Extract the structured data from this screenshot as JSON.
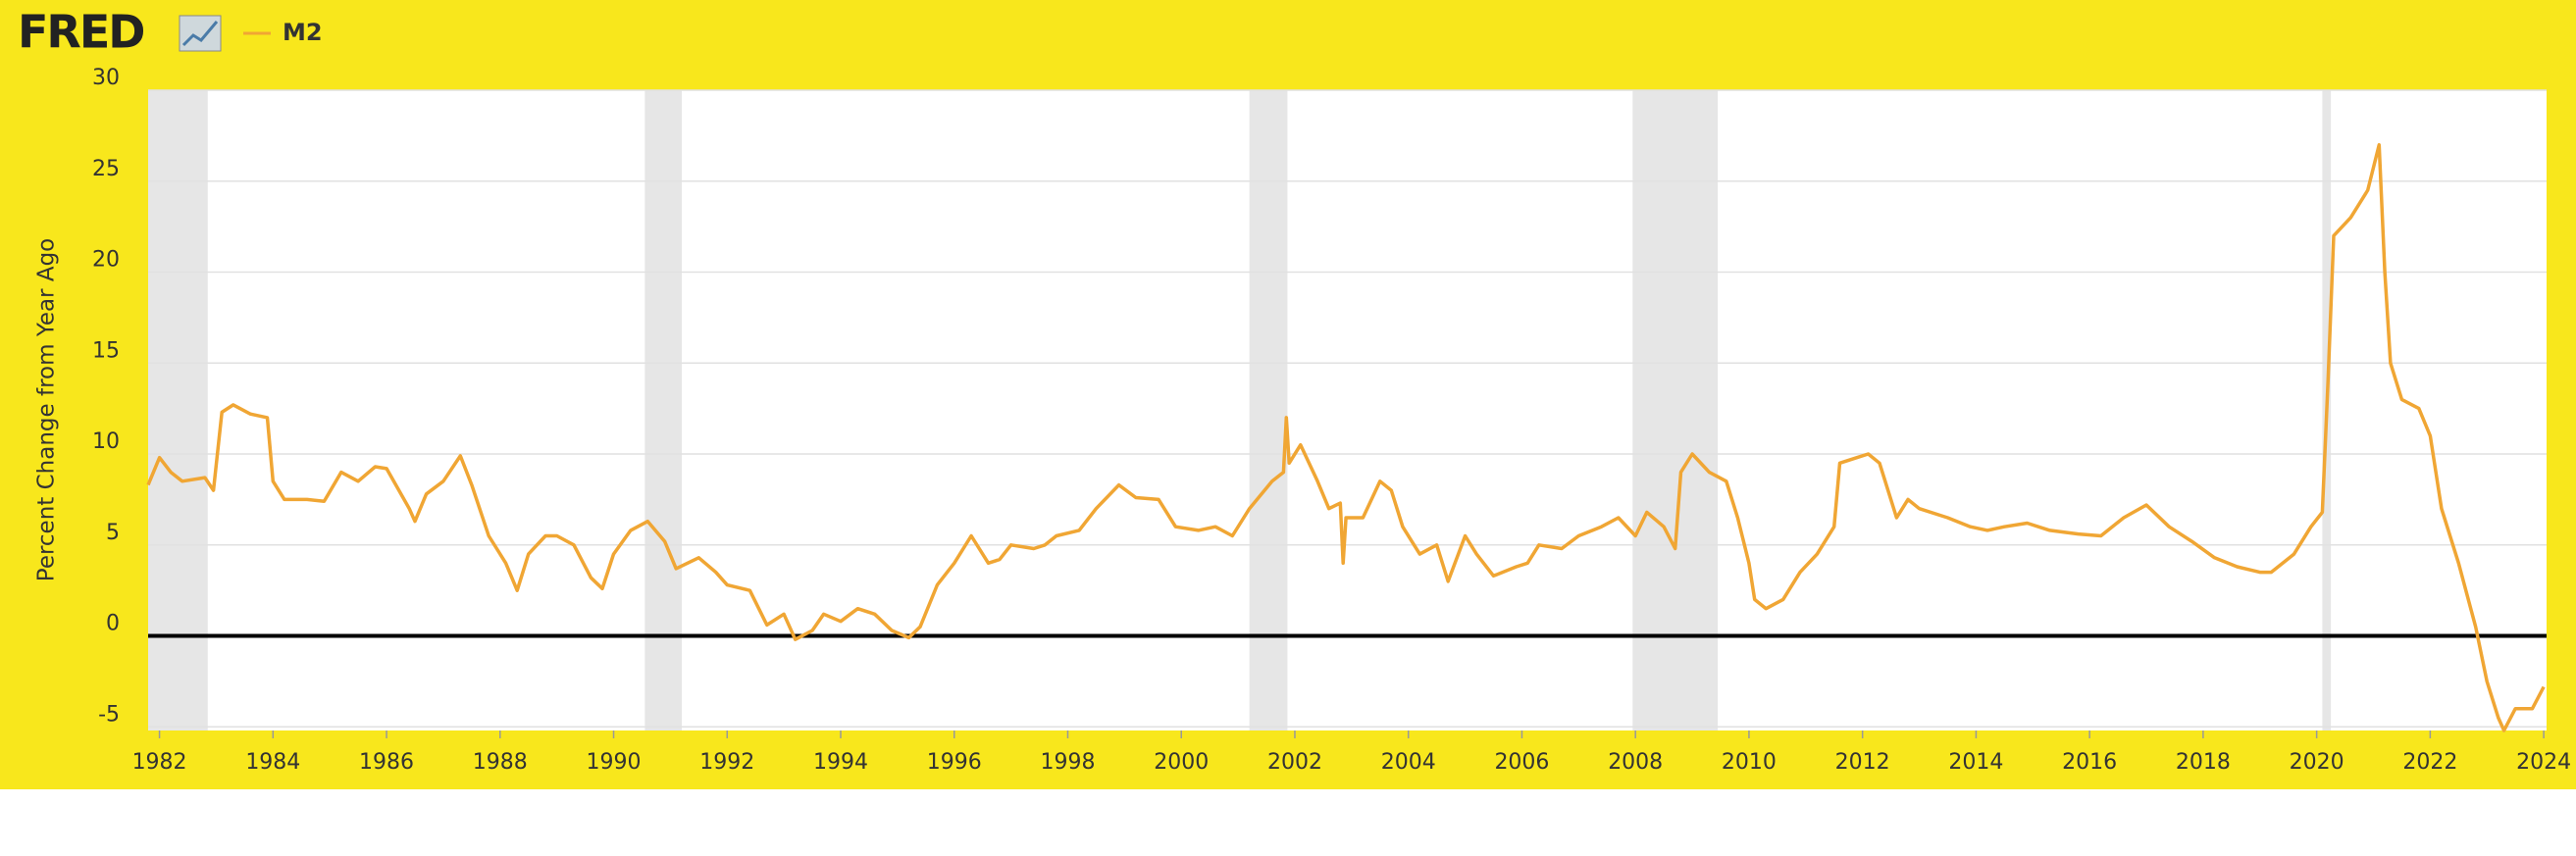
{
  "chart_data": {
    "type": "line",
    "logo": "FRED",
    "ylabel": "Percent Change from Year Ago",
    "xlim": [
      1981.8,
      2024.05
    ],
    "xticks": [
      1982,
      1984,
      1986,
      1988,
      1990,
      1992,
      1994,
      1996,
      1998,
      2000,
      2002,
      2004,
      2006,
      2008,
      2010,
      2012,
      2014,
      2016,
      2018,
      2020,
      2022,
      2024
    ],
    "ylim": [
      -5.2,
      30
    ],
    "yticks": [
      -5,
      0,
      5,
      10,
      15,
      20,
      25,
      30
    ],
    "grid": true,
    "legend": "top-left",
    "recession_color": "#e6e6e6",
    "recessions": [
      [
        1981.8,
        1982.85
      ],
      [
        1990.55,
        1991.2
      ],
      [
        2001.2,
        2001.87
      ],
      [
        2007.95,
        2009.45
      ],
      [
        2020.1,
        2020.25
      ]
    ],
    "x": [
      1981.8,
      1982.0,
      1982.2,
      1982.4,
      1982.8,
      1982.95,
      1983.1,
      1983.3,
      1983.6,
      1983.9,
      1984.0,
      1984.2,
      1984.6,
      1984.9,
      1985.2,
      1985.5,
      1985.8,
      1986.0,
      1986.4,
      1986.5,
      1986.7,
      1987.0,
      1987.3,
      1987.5,
      1987.8,
      1988.1,
      1988.3,
      1988.5,
      1988.8,
      1989.0,
      1989.3,
      1989.6,
      1989.8,
      1990.0,
      1990.3,
      1990.6,
      1990.9,
      1991.1,
      1991.5,
      1991.8,
      1992.0,
      1992.4,
      1992.7,
      1993.0,
      1993.2,
      1993.5,
      1993.7,
      1994.0,
      1994.3,
      1994.6,
      1994.9,
      1995.2,
      1995.4,
      1995.7,
      1996.0,
      1996.3,
      1996.6,
      1996.8,
      1997.0,
      1997.4,
      1997.6,
      1997.8,
      1998.2,
      1998.5,
      1998.9,
      1999.2,
      1999.6,
      1999.9,
      2000.3,
      2000.6,
      2000.9,
      2001.2,
      2001.6,
      2001.8,
      2001.85,
      2001.9,
      2002.1,
      2002.4,
      2002.6,
      2002.8,
      2002.85,
      2002.9,
      2003.2,
      2003.5,
      2003.7,
      2003.9,
      2004.2,
      2004.5,
      2004.7,
      2005.0,
      2005.2,
      2005.5,
      2005.9,
      2006.1,
      2006.3,
      2006.7,
      2007.0,
      2007.4,
      2007.7,
      2008.0,
      2008.2,
      2008.5,
      2008.7,
      2008.8,
      2009.0,
      2009.3,
      2009.6,
      2009.8,
      2010.0,
      2010.1,
      2010.3,
      2010.6,
      2010.9,
      2011.2,
      2011.5,
      2011.6,
      2011.9,
      2012.1,
      2012.3,
      2012.6,
      2012.8,
      2013.0,
      2013.5,
      2013.9,
      2014.2,
      2014.5,
      2014.9,
      2015.3,
      2015.8,
      2016.2,
      2016.6,
      2017.0,
      2017.4,
      2017.8,
      2018.2,
      2018.6,
      2019.0,
      2019.2,
      2019.6,
      2019.9,
      2020.1,
      2020.2,
      2020.3,
      2020.6,
      2020.9,
      2021.1,
      2021.2,
      2021.3,
      2021.5,
      2021.8,
      2022.0,
      2022.2,
      2022.5,
      2022.8,
      2023.0,
      2023.2,
      2023.3,
      2023.5,
      2023.8,
      2024.0
    ],
    "series": [
      {
        "name": "M2",
        "color": "#f0a634",
        "values": [
          8.3,
          9.8,
          9.0,
          8.5,
          8.7,
          8.0,
          12.3,
          12.7,
          12.2,
          12.0,
          8.5,
          7.5,
          7.5,
          7.4,
          9.0,
          8.5,
          9.3,
          9.2,
          7.0,
          6.3,
          7.8,
          8.5,
          9.9,
          8.3,
          5.5,
          4.0,
          2.5,
          4.5,
          5.5,
          5.5,
          5.0,
          3.2,
          2.6,
          4.5,
          5.8,
          6.3,
          5.2,
          3.7,
          4.3,
          3.5,
          2.8,
          2.5,
          0.6,
          1.2,
          -0.2,
          0.3,
          1.2,
          0.8,
          1.5,
          1.2,
          0.3,
          -0.1,
          0.5,
          2.8,
          4.0,
          5.5,
          4.0,
          4.2,
          5.0,
          4.8,
          5.0,
          5.5,
          5.8,
          7.0,
          8.3,
          7.6,
          7.5,
          6.0,
          5.8,
          6.0,
          5.5,
          7.0,
          8.5,
          9.0,
          12.0,
          9.5,
          10.5,
          8.5,
          7.0,
          7.3,
          4.0,
          6.5,
          6.5,
          8.5,
          8.0,
          6.0,
          4.5,
          5.0,
          3.0,
          5.5,
          4.5,
          3.3,
          3.8,
          4.0,
          5.0,
          4.8,
          5.5,
          6.0,
          6.5,
          5.5,
          6.8,
          6.0,
          4.8,
          9.0,
          10.0,
          9.0,
          8.5,
          6.5,
          4.0,
          2.0,
          1.5,
          2.0,
          3.5,
          4.5,
          6.0,
          9.5,
          9.8,
          10.0,
          9.5,
          6.5,
          7.5,
          7.0,
          6.5,
          6.0,
          5.8,
          6.0,
          6.2,
          5.8,
          5.6,
          5.5,
          6.5,
          7.2,
          6.0,
          5.2,
          4.3,
          3.8,
          3.5,
          3.5,
          4.5,
          6.0,
          6.8,
          14.0,
          22.0,
          23.0,
          24.5,
          27.0,
          20.0,
          15.0,
          13.0,
          12.5,
          11.0,
          7.0,
          4.0,
          0.5,
          -2.5,
          -4.5,
          -5.2,
          -4.0,
          -4.0,
          -2.8
        ]
      }
    ]
  }
}
